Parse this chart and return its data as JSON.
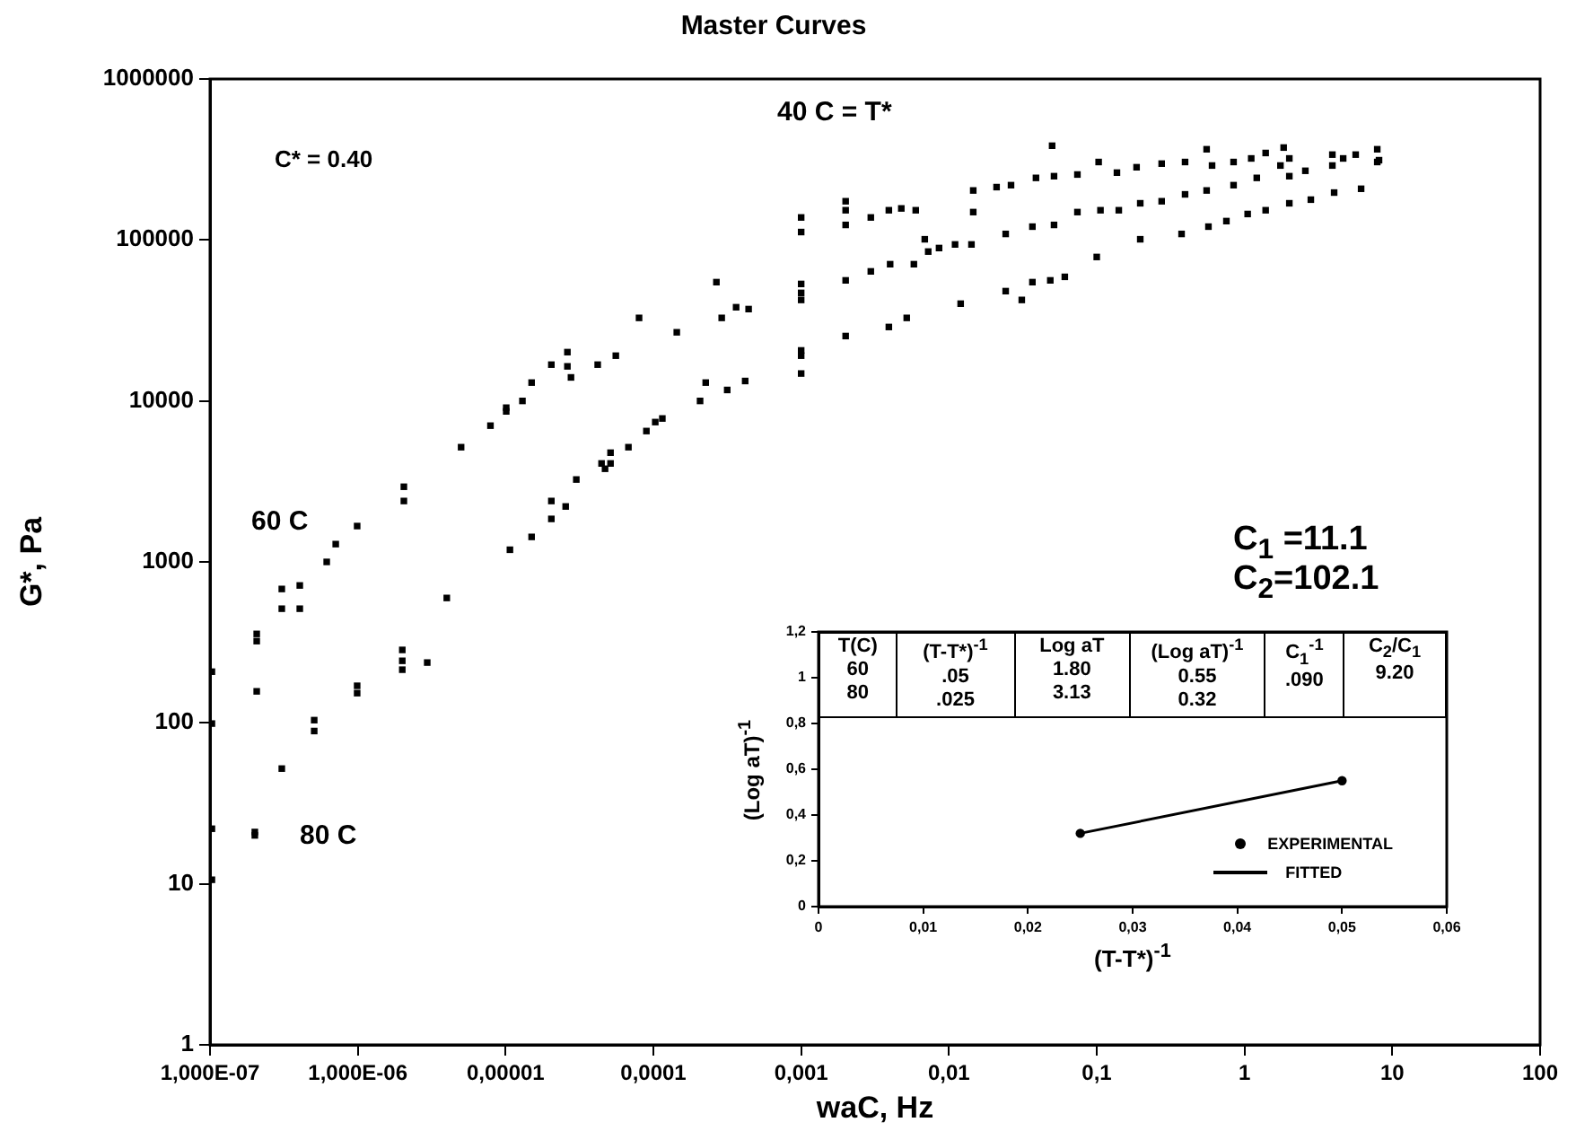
{
  "chart_data": [
    {
      "type": "scatter",
      "title": "Master Curves",
      "xlabel": "waC, Hz",
      "ylabel": "G*, Pa",
      "log": "xy",
      "grid": false,
      "marker": "square",
      "xlim": [
        1e-07,
        100
      ],
      "xticks": [
        {
          "value": 1e-07,
          "label": "1,000E-07"
        },
        {
          "value": 1e-06,
          "label": "1,000E-06"
        },
        {
          "value": 1e-05,
          "label": "0,00001"
        },
        {
          "value": 0.0001,
          "label": "0,0001"
        },
        {
          "value": 0.001,
          "label": "0,001"
        },
        {
          "value": 0.01,
          "label": "0,01"
        },
        {
          "value": 0.1,
          "label": "0,1"
        },
        1,
        10,
        100
      ],
      "ylim": [
        1,
        1000000
      ],
      "yticks": [
        1,
        10,
        100,
        1000,
        10000,
        100000,
        1000000
      ],
      "annotations": [
        "C* = 0.40",
        "40 C = T*",
        "60 C",
        "80 C",
        "C$_{1}$ =11.1",
        "C$_{2}$=102.1"
      ],
      "series": [
        {
          "color": "#000000",
          "x": [
            1.03e-07,
            1.03e-07,
            1.03e-07,
            1.03e-07,
            2.07e-07,
            2.07e-07,
            2.07e-07,
            3.06e-07,
            3.06e-07,
            4.05e-07,
            4.05e-07,
            6.16e-07,
            7.09e-07,
            9.9e-07,
            2.05e-06,
            2.05e-06,
            5e-06,
            7.9e-06,
            1.01e-05,
            1.01e-05,
            1.3e-05,
            1.5e-05,
            2.04e-05,
            2.62e-05,
            2.62e-05,
            2.77e-05,
            4.2e-05,
            5.57e-05,
            8e-05,
            0.000144,
            0.000267,
            0.00029,
            0.000363,
            0.000441,
            2.01e-07,
            2.01e-07,
            3.06e-07,
            5.07e-07,
            5.07e-07,
            9.9e-07,
            9.9e-07,
            2e-06,
            2e-06,
            2e-06,
            2.95e-06,
            4e-06,
            1.07e-05,
            1.5e-05,
            2.04e-05,
            2.04e-05,
            2.55e-05,
            3.01e-05,
            4.46e-05,
            4.71e-05,
            5.13e-05,
            5.13e-05,
            6.78e-05,
            8.97e-05,
            0.000103,
            0.000115,
            0.000207,
            0.000226,
            0.000316,
            0.000418,
            0.001,
            0.001,
            0.001,
            0.001,
            0.001,
            0.001,
            0.001,
            0.001,
            0.002,
            0.002,
            0.002,
            0.002,
            0.002,
            0.0499,
            0.0146,
            0.0146,
            0.021,
            0.0263,
            0.0388,
            0.0514,
            0.074,
            0.103,
            0.137,
            0.186,
            0.275,
            0.396,
            0.554,
            0.603,
            0.843,
            1.11,
            1.39,
            1.84,
            2.01,
            3.93,
            4.65,
            5.65,
            7.91,
            7.91,
            0.00296,
            0.00392,
            0.00476,
            0.00596,
            0.00296,
            0.004,
            0.00579,
            0.00686,
            0.00724,
            0.00857,
            0.011,
            0.0142,
            0.0242,
            0.0367,
            0.0514,
            0.074,
            0.106,
            0.141,
            0.197,
            0.275,
            0.396,
            0.554,
            0.843,
            1.21,
            1.75,
            2.01,
            2.58,
            3.93,
            8.13,
            0.00392,
            0.00518,
            0.012,
            0.0242,
            0.0311,
            0.0367,
            0.0485,
            0.0608,
            0.1,
            0.197,
            0.375,
            0.57,
            0.754,
            1.05,
            1.39,
            2.01,
            2.81,
            4.04,
            6.15
          ],
          "values": [
            208,
            99,
            22,
            10.6,
            357,
            322,
            157,
            679,
            512,
            714,
            512,
            1000,
            1290,
            1670,
            2930,
            2390,
            5160,
            7020,
            9080,
            8610,
            10000,
            13000,
            16800,
            20100,
            16400,
            14000,
            16800,
            19100,
            32800,
            26700,
            54700,
            32800,
            38200,
            37200,
            21,
            20,
            52,
            104,
            89,
            170,
            153,
            284,
            243,
            214,
            237,
            597,
            1190,
            1430,
            1850,
            2390,
            2210,
            3250,
            4090,
            3790,
            4770,
            4090,
            5160,
            6500,
            7390,
            7780,
            10000,
            13000,
            11700,
            13300,
            138000,
            112000,
            53300,
            46900,
            42400,
            20600,
            19100,
            14800,
            174000,
            153000,
            124000,
            56100,
            25300,
            385000,
            203000,
            149000,
            213000,
            219000,
            243000,
            249000,
            255000,
            305000,
            262000,
            283000,
            298000,
            305000,
            366000,
            290000,
            305000,
            321000,
            347000,
            375000,
            321000,
            339000,
            321000,
            339000,
            366000,
            305000,
            138000,
            153000,
            157000,
            153000,
            63800,
            70700,
            70700,
            101000,
            84700,
            89100,
            93800,
            93800,
            109000,
            121000,
            124000,
            149000,
            153000,
            153000,
            169000,
            174000,
            192000,
            203000,
            219000,
            243000,
            290000,
            249000,
            269000,
            290000,
            313000,
            28800,
            32800,
            40200,
            48100,
            42400,
            54700,
            56100,
            59000,
            78400,
            101000,
            109000,
            121000,
            131000,
            145000,
            153000,
            169000,
            178000,
            197000,
            208000
          ]
        }
      ]
    },
    {
      "type": "line",
      "xlabel": "(T-T*)$^{-1}$",
      "ylabel": "(Log aT)$^{-1}$",
      "grid": false,
      "legend": "bottom right",
      "xlim": [
        0,
        0.06
      ],
      "xticks": [
        0,
        {
          "value": 0.01,
          "label": "0,01"
        },
        {
          "value": 0.02,
          "label": "0,02"
        },
        {
          "value": 0.03,
          "label": "0,03"
        },
        {
          "value": 0.04,
          "label": "0,04"
        },
        {
          "value": 0.05,
          "label": "0,05"
        },
        {
          "value": 0.06,
          "label": "0,06"
        }
      ],
      "ylim": [
        0,
        1.2
      ],
      "yticks": [
        0,
        {
          "value": 0.2,
          "label": "0,2"
        },
        {
          "value": 0.4,
          "label": "0,4"
        },
        {
          "value": 0.6,
          "label": "0,6"
        },
        {
          "value": 0.8,
          "label": "0,8"
        },
        1,
        {
          "value": 1.2,
          "label": "1,2"
        }
      ],
      "annotations": [
        "T(C)\n60\n80",
        "(T-T*)$^{-1}$\n.05\n.025",
        "Log aT\n1.80\n3.13",
        "(Log aT)$^{-1}$\n0.55\n0.32",
        "C$_{1}$$^{-1}$\n.090",
        "C$_{2}$/C$_{1}$\n9.20"
      ],
      "series": [
        {
          "name": "EXPERIMENTAL",
          "type": "scatter",
          "marker": "circle",
          "color": "#000000",
          "x": [
            0.025,
            0.05
          ],
          "values": [
            0.32,
            0.55
          ]
        },
        {
          "name": "FITTED",
          "color": "#000000",
          "x": [
            0.025,
            0.05
          ],
          "values": [
            0.32,
            0.55
          ]
        }
      ]
    }
  ]
}
